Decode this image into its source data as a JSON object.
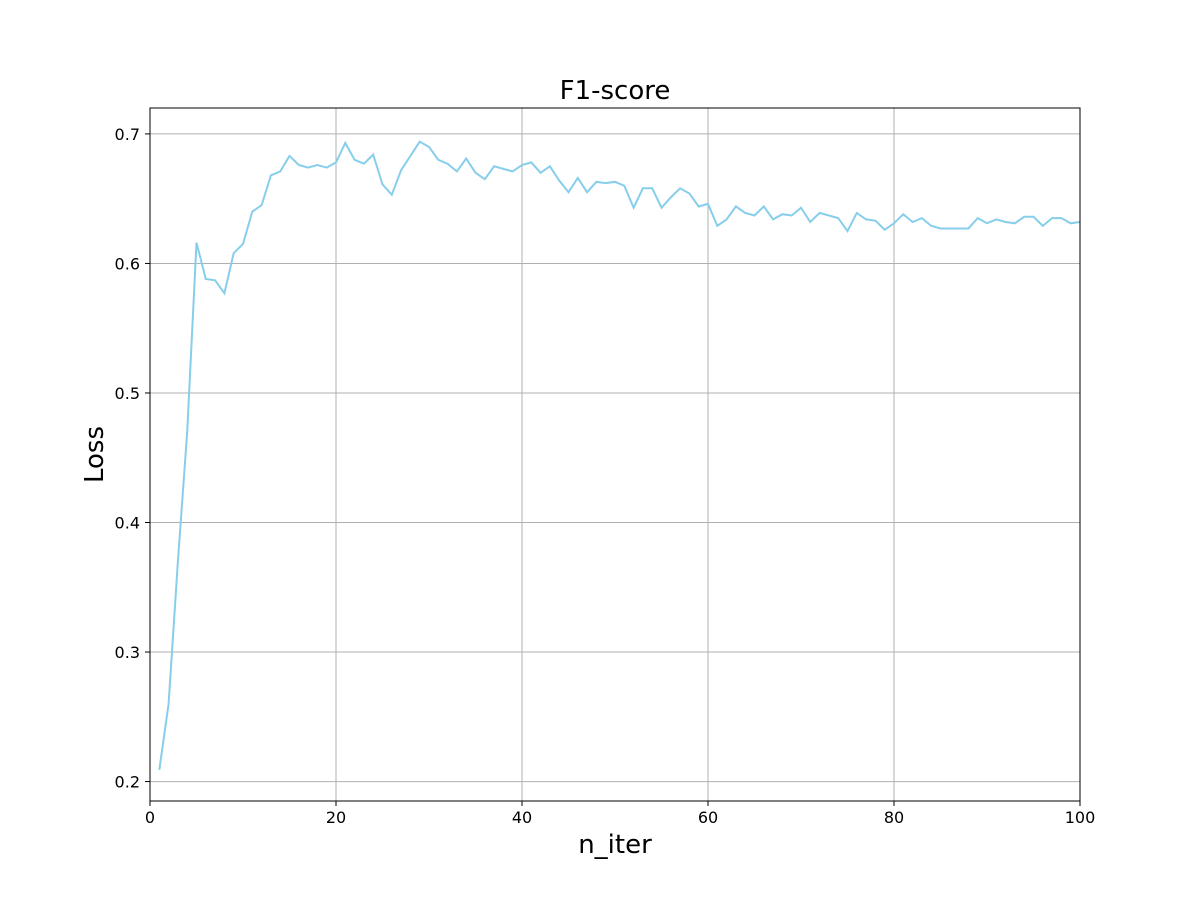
{
  "chart_data": {
    "type": "line",
    "title": "F1-score",
    "xlabel": "n_iter",
    "ylabel": "Loss",
    "xlim": [
      0,
      100
    ],
    "ylim": [
      0.185,
      0.72
    ],
    "xticks": [
      0,
      20,
      40,
      60,
      80,
      100
    ],
    "yticks": [
      0.2,
      0.3,
      0.4,
      0.5,
      0.6,
      0.7
    ],
    "grid": true,
    "line_color": "#87ceeb",
    "series": [
      {
        "x": [
          1,
          2,
          3,
          4,
          5,
          6,
          7,
          8,
          9,
          10,
          11,
          12,
          13,
          14,
          15,
          16,
          17,
          18,
          19,
          20,
          21,
          22,
          23,
          24,
          25,
          26,
          27,
          28,
          29,
          30,
          31,
          32,
          33,
          34,
          35,
          36,
          37,
          38,
          39,
          40,
          41,
          42,
          43,
          44,
          45,
          46,
          47,
          48,
          49,
          50,
          51,
          52,
          53,
          54,
          55,
          56,
          57,
          58,
          59,
          60,
          61,
          62,
          63,
          64,
          65,
          66,
          67,
          68,
          69,
          70,
          71,
          72,
          73,
          74,
          75,
          76,
          77,
          78,
          79,
          80,
          81,
          82,
          83,
          84,
          85,
          86,
          87,
          88,
          89,
          90,
          91,
          92,
          93,
          94,
          95,
          96,
          97,
          98,
          99,
          100
        ],
        "values": [
          0.209,
          0.26,
          0.37,
          0.47,
          0.616,
          0.588,
          0.587,
          0.577,
          0.608,
          0.615,
          0.64,
          0.645,
          0.668,
          0.671,
          0.683,
          0.676,
          0.674,
          0.676,
          0.674,
          0.678,
          0.693,
          0.68,
          0.677,
          0.684,
          0.661,
          0.653,
          0.672,
          0.683,
          0.694,
          0.69,
          0.68,
          0.677,
          0.671,
          0.681,
          0.67,
          0.665,
          0.675,
          0.673,
          0.671,
          0.676,
          0.678,
          0.67,
          0.675,
          0.664,
          0.655,
          0.666,
          0.655,
          0.663,
          0.662,
          0.663,
          0.66,
          0.643,
          0.658,
          0.658,
          0.643,
          0.651,
          0.658,
          0.654,
          0.644,
          0.646,
          0.629,
          0.634,
          0.644,
          0.639,
          0.637,
          0.644,
          0.634,
          0.638,
          0.637,
          0.643,
          0.632,
          0.639,
          0.637,
          0.635,
          0.625,
          0.639,
          0.634,
          0.633,
          0.626,
          0.631,
          0.638,
          0.632,
          0.635,
          0.629,
          0.627,
          0.627,
          0.627,
          0.627,
          0.635,
          0.631,
          0.634,
          0.632,
          0.631,
          0.636,
          0.636,
          0.629,
          0.635,
          0.635,
          0.631,
          0.632
        ]
      }
    ]
  }
}
